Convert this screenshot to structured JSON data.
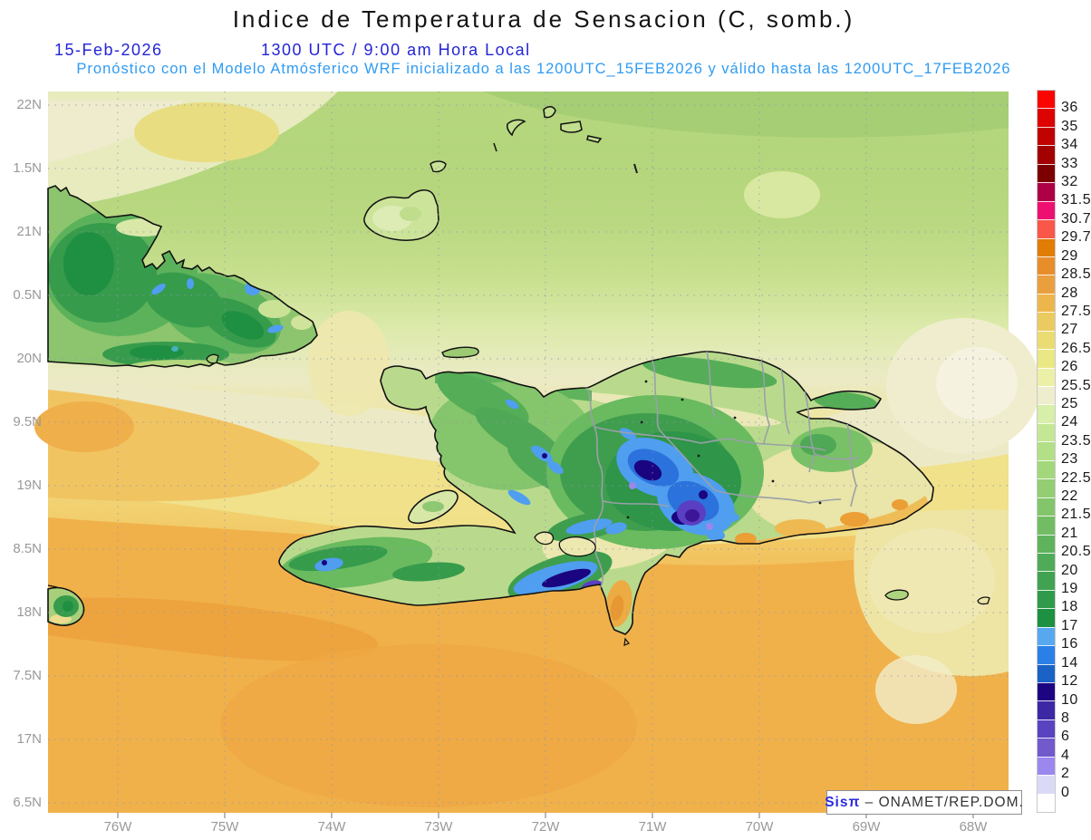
{
  "header": {
    "title": "Indice de Temperatura de Sensacion (C, somb.)",
    "date": "15-Feb-2026",
    "time": "1300 UTC / 9:00 am Hora Local",
    "forecast_line": "Pronóstico con el Modelo Atmósferico WRF inicializado a las 1200UTC_15FEB2026 y válido hasta las  1200UTC_17FEB2026",
    "title_color": "#141414",
    "date_color": "#2424D6",
    "forecast_color": "#2F9BF2"
  },
  "map": {
    "x_axis_labels": [
      "76W",
      "75W",
      "74W",
      "73W",
      "72W",
      "71W",
      "70W",
      "69W",
      "68W"
    ],
    "y_axis_labels": [
      "22N",
      "1.5N",
      "21N",
      "0.5N",
      "20N",
      "9.5N",
      "19N",
      "8.5N",
      "18N",
      "7.5N",
      "17N",
      "6.5N"
    ],
    "axis_label_color": "#999999",
    "region": "Hispaniola / Eastern Cuba / Caribbean"
  },
  "colorbar": {
    "unit": "C",
    "labels": [
      "36",
      "35",
      "34",
      "33",
      "32",
      "31.5",
      "30.7",
      "29.7",
      "29",
      "28.5",
      "28",
      "27.5",
      "27",
      "26.5",
      "26",
      "25.5",
      "25",
      "24",
      "23.5",
      "23",
      "22.5",
      "22",
      "21.5",
      "21",
      "20.5",
      "20",
      "19",
      "18",
      "17",
      "16",
      "14",
      "12",
      "10",
      "8",
      "6",
      "4",
      "2",
      "0"
    ],
    "colors": [
      "#FB0400",
      "#DC0300",
      "#C00200",
      "#A20100",
      "#7C0000",
      "#AE0145",
      "#EE1070",
      "#F85749",
      "#E17C05",
      "#E78E2B",
      "#EA9F3E",
      "#EDB64D",
      "#EBCA60",
      "#EADC73",
      "#EAE785",
      "#ECF0A7",
      "#EEEDCE",
      "#D7EFA9",
      "#C4E795",
      "#B3DF87",
      "#A3D77C",
      "#93CE73",
      "#82C56B",
      "#72BC63",
      "#60B35C",
      "#50AB58",
      "#41A252",
      "#2F9A4A",
      "#1D9041",
      "#58A8F0",
      "#2B80E8",
      "#1A62C5",
      "#1D0482",
      "#3C28A5",
      "#5A43C0",
      "#7259CC",
      "#9C87EF",
      "#DBDAF6",
      "#FFFFFF"
    ]
  },
  "watermark": {
    "brand": "Sisπ",
    "separator": " – ",
    "org": "ONAMET/REP.DOM.",
    "brand_color": "#2A2ADF"
  }
}
